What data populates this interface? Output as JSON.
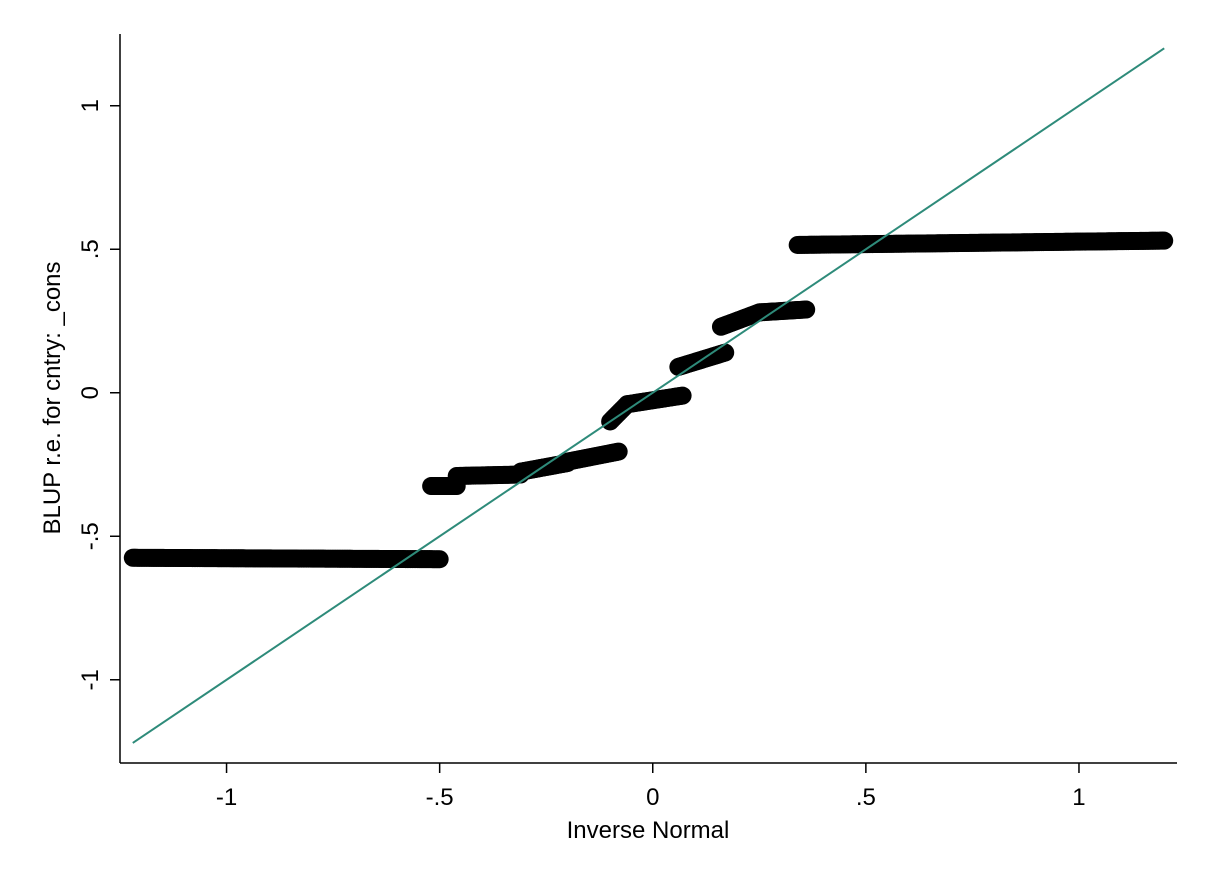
{
  "chart_data": {
    "type": "scatter",
    "title": "",
    "xlabel": "Inverse Normal",
    "ylabel": "BLUP r.e. for cntry: _cons",
    "xlim": [
      -1.25,
      1.23
    ],
    "ylim": [
      -1.29,
      1.25
    ],
    "xticks": [
      -1,
      -0.5,
      0,
      0.5,
      1
    ],
    "yticks": [
      -1,
      -0.5,
      0,
      0.5,
      1
    ],
    "xtick_labels": [
      "-1",
      "-.5",
      "0",
      ".5",
      "1"
    ],
    "ytick_labels": [
      "-1",
      "-.5",
      "0",
      ".5",
      "1"
    ],
    "grid": false,
    "marker_color": "#000000",
    "reference_line": {
      "from": [
        -1.22,
        -1.22
      ],
      "to": [
        1.2,
        1.2
      ],
      "color": "#2e8b7a"
    },
    "series": [
      {
        "segments": [
          {
            "x_start": -1.22,
            "x_end": -0.5,
            "y_start": -0.575,
            "y_end": -0.58
          },
          {
            "x_start": -0.52,
            "x_end": -0.46,
            "y_start": -0.325,
            "y_end": -0.325
          },
          {
            "x_start": -0.46,
            "x_end": -0.31,
            "y_start": -0.29,
            "y_end": -0.285
          },
          {
            "x_start": -0.31,
            "x_end": -0.2,
            "y_start": -0.275,
            "y_end": -0.245
          },
          {
            "x_start": -0.2,
            "x_end": -0.08,
            "y_start": -0.24,
            "y_end": -0.205
          },
          {
            "x_start": -0.1,
            "x_end": -0.06,
            "y_start": -0.1,
            "y_end": -0.04
          },
          {
            "x_start": -0.06,
            "x_end": 0.07,
            "y_start": -0.04,
            "y_end": -0.01
          },
          {
            "x_start": 0.06,
            "x_end": 0.17,
            "y_start": 0.09,
            "y_end": 0.14
          },
          {
            "x_start": 0.16,
            "x_end": 0.25,
            "y_start": 0.23,
            "y_end": 0.28
          },
          {
            "x_start": 0.25,
            "x_end": 0.36,
            "y_start": 0.28,
            "y_end": 0.29
          },
          {
            "x_start": 0.34,
            "x_end": 1.2,
            "y_start": 0.515,
            "y_end": 0.53
          }
        ]
      }
    ]
  }
}
